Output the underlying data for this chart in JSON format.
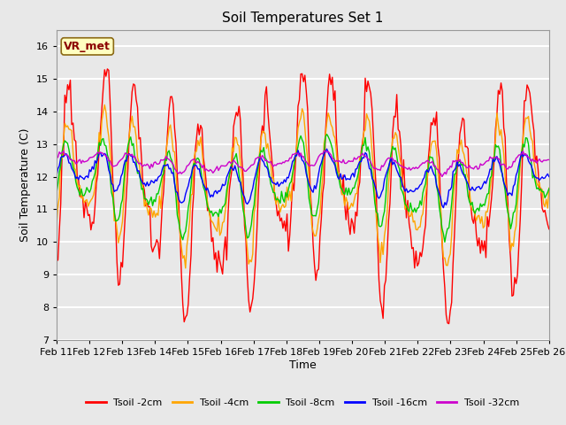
{
  "title": "Soil Temperatures Set 1",
  "xlabel": "Time",
  "ylabel": "Soil Temperature (C)",
  "ylim": [
    7.0,
    16.5
  ],
  "yticks": [
    7.0,
    8.0,
    9.0,
    10.0,
    11.0,
    12.0,
    13.0,
    14.0,
    15.0,
    16.0
  ],
  "xlabels": [
    "Feb 11",
    "Feb 12",
    "Feb 13",
    "Feb 14",
    "Feb 15",
    "Feb 16",
    "Feb 17",
    "Feb 18",
    "Feb 19",
    "Feb 20",
    "Feb 21",
    "Feb 22",
    "Feb 23",
    "Feb 24",
    "Feb 25",
    "Feb 26"
  ],
  "annotation_text": "VR_met",
  "annotation_color": "#8B0000",
  "annotation_bg": "#FFFFC0",
  "line_colors": {
    "2cm": "#FF0000",
    "4cm": "#FFA500",
    "8cm": "#00CC00",
    "16cm": "#0000FF",
    "32cm": "#CC00CC"
  },
  "legend_labels": [
    "Tsoil -2cm",
    "Tsoil -4cm",
    "Tsoil -8cm",
    "Tsoil -16cm",
    "Tsoil -32cm"
  ],
  "fig_bg_color": "#E8E8E8",
  "plot_bg_color": "#E8E8E8",
  "grid_color": "#FFFFFF",
  "n_points": 360,
  "days": 15,
  "title_fontsize": 11,
  "axis_label_fontsize": 9,
  "tick_fontsize": 8,
  "legend_fontsize": 8,
  "linewidth": 1.0
}
